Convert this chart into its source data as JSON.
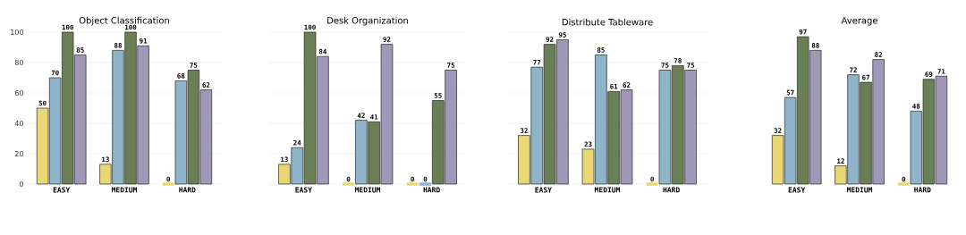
{
  "chart_data": [
    {
      "type": "bar",
      "title": "Object Classification",
      "categories": [
        "EASY",
        "MEDIUM",
        "HARD"
      ],
      "ylim": [
        0,
        100
      ],
      "yticks": [
        0,
        20,
        40,
        60,
        80,
        100
      ],
      "grid": "y",
      "data_labels": true,
      "series": [
        {
          "color": "#e8d774",
          "values": [
            50,
            13,
            0
          ]
        },
        {
          "color": "#8fb3c8",
          "values": [
            70,
            88,
            68
          ]
        },
        {
          "color": "#6b7f56",
          "values": [
            100,
            100,
            75
          ]
        },
        {
          "color": "#9f98b8",
          "values": [
            85,
            91,
            62
          ]
        }
      ]
    },
    {
      "type": "bar",
      "title": "Desk Organization",
      "categories": [
        "EASY",
        "MEDIUM",
        "HARD"
      ],
      "ylim": [
        0,
        100
      ],
      "yticks": [
        0,
        20,
        40,
        60,
        80,
        100
      ],
      "grid": "y",
      "data_labels": true,
      "tick_labels": "x",
      "series": [
        {
          "color": "#e8d774",
          "values": [
            13,
            0,
            0
          ]
        },
        {
          "color": "#8fb3c8",
          "values": [
            24,
            42,
            0
          ]
        },
        {
          "color": "#6b7f56",
          "values": [
            100,
            41,
            55
          ]
        },
        {
          "color": "#9f98b8",
          "values": [
            84,
            92,
            75
          ]
        }
      ]
    },
    {
      "type": "bar",
      "title": "Distribute Tableware",
      "categories": [
        "EASY",
        "MEDIUM",
        "HARD"
      ],
      "ylim": [
        0,
        100
      ],
      "yticks": [
        0,
        20,
        40,
        60,
        80,
        100
      ],
      "grid": "y",
      "data_labels": true,
      "tick_labels": "x",
      "series": [
        {
          "color": "#e8d774",
          "values": [
            32,
            23,
            0
          ]
        },
        {
          "color": "#8fb3c8",
          "values": [
            77,
            85,
            75
          ]
        },
        {
          "color": "#6b7f56",
          "values": [
            92,
            61,
            78
          ]
        },
        {
          "color": "#9f98b8",
          "values": [
            95,
            62,
            75
          ]
        }
      ]
    },
    {
      "type": "bar",
      "title": "Average",
      "categories": [
        "EASY",
        "MEDIUM",
        "HARD"
      ],
      "ylim": [
        0,
        100
      ],
      "yticks": [
        0,
        20,
        40,
        60,
        80,
        100
      ],
      "grid": false,
      "data_labels": true,
      "tick_labels": "x",
      "series": [
        {
          "color": "#e8d774",
          "values": [
            32,
            12,
            0
          ]
        },
        {
          "color": "#8fb3c8",
          "values": [
            57,
            72,
            48
          ]
        },
        {
          "color": "#6b7f56",
          "values": [
            97,
            67,
            69
          ]
        },
        {
          "color": "#9f98b8",
          "values": [
            88,
            82,
            71
          ]
        }
      ]
    }
  ]
}
